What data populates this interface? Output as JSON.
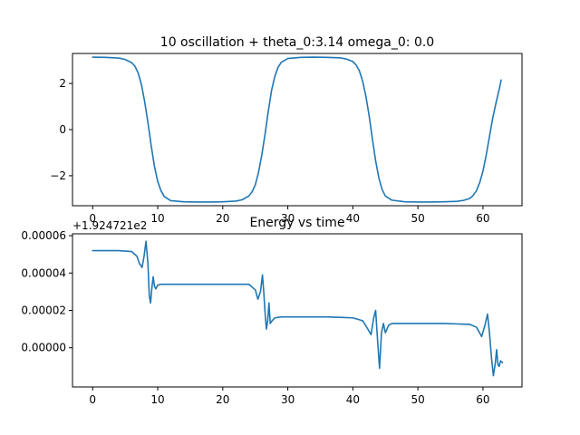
{
  "chart_data": [
    {
      "type": "line",
      "title": "10 oscillation + theta_0:3.14 omega_0: 0.0",
      "xlabel": "",
      "ylabel": "",
      "xlim": [
        -3.1,
        66.0
      ],
      "ylim": [
        -3.3,
        3.3
      ],
      "xticks": [
        0,
        10,
        20,
        30,
        40,
        50,
        60
      ],
      "xtick_labels": [
        "0",
        "10",
        "20",
        "30",
        "40",
        "50",
        "60"
      ],
      "yticks": [
        -2,
        0,
        2
      ],
      "ytick_labels": [
        "−2",
        "0",
        "2"
      ],
      "grid": false,
      "color": "#1f77b4",
      "series": [
        {
          "x": [
            0,
            2,
            4,
            5,
            6,
            6.5,
            7,
            7.5,
            8,
            8.5,
            9,
            9.5,
            10,
            10.5,
            11,
            12,
            14,
            16,
            18,
            20,
            22,
            23,
            24,
            24.5,
            25,
            25.5,
            26,
            26.5,
            27,
            27.5,
            28,
            28.5,
            29,
            30,
            32,
            34,
            36,
            38,
            39,
            40,
            40.5,
            41,
            41.5,
            42,
            42.5,
            43,
            43.5,
            44,
            44.5,
            45,
            46,
            48,
            50,
            52,
            54,
            56,
            57,
            58,
            58.5,
            59,
            59.5,
            60,
            60.5,
            61,
            61.5,
            62,
            62.5,
            62.8
          ],
          "y": [
            3.14,
            3.13,
            3.1,
            3.04,
            2.9,
            2.75,
            2.45,
            1.95,
            1.2,
            0.3,
            -0.7,
            -1.6,
            -2.25,
            -2.65,
            -2.9,
            -3.08,
            -3.13,
            -3.14,
            -3.14,
            -3.13,
            -3.1,
            -3.04,
            -2.88,
            -2.7,
            -2.4,
            -1.85,
            -1.1,
            -0.2,
            0.8,
            1.7,
            2.3,
            2.7,
            2.92,
            3.08,
            3.13,
            3.14,
            3.13,
            3.11,
            3.06,
            2.95,
            2.8,
            2.55,
            2.1,
            1.45,
            0.6,
            -0.4,
            -1.35,
            -2.1,
            -2.6,
            -2.88,
            -3.06,
            -3.13,
            -3.14,
            -3.14,
            -3.13,
            -3.11,
            -3.07,
            -2.98,
            -2.85,
            -2.65,
            -2.3,
            -1.8,
            -1.1,
            -0.3,
            0.5,
            1.15,
            1.75,
            2.15
          ]
        }
      ]
    },
    {
      "type": "line",
      "title": "Energy vs time",
      "xlabel": "",
      "ylabel": "",
      "offset_text": "+1.924721e2",
      "xlim": [
        -3.1,
        66.0
      ],
      "ylim": [
        -2.1e-05,
        6.1e-05
      ],
      "xticks": [
        0,
        10,
        20,
        30,
        40,
        50,
        60
      ],
      "xtick_labels": [
        "0",
        "10",
        "20",
        "30",
        "40",
        "50",
        "60"
      ],
      "yticks": [
        0,
        2e-05,
        4e-05,
        6e-05
      ],
      "ytick_labels": [
        "0.00000",
        "0.00002",
        "0.00004",
        "0.00006"
      ],
      "grid": false,
      "color": "#1f77b4",
      "series": [
        {
          "x": [
            0,
            2,
            4,
            6,
            6.8,
            7.2,
            7.6,
            7.9,
            8.2,
            8.5,
            8.7,
            8.9,
            9.1,
            9.3,
            9.5,
            9.7,
            10,
            10.5,
            11,
            14,
            18,
            22,
            24,
            25,
            25.4,
            25.8,
            26.1,
            26.3,
            26.5,
            26.7,
            26.9,
            27.1,
            27.3,
            27.6,
            28,
            29,
            32,
            36,
            40,
            41.5,
            42.3,
            42.8,
            43.2,
            43.5,
            43.8,
            44.1,
            44.4,
            44.7,
            45,
            45.5,
            46,
            50,
            54,
            58,
            59,
            59.8,
            60.3,
            60.7,
            61,
            61.3,
            61.6,
            61.9,
            62.1,
            62.3,
            62.5,
            62.7,
            63
          ],
          "y": [
            5.2e-05,
            5.2e-05,
            5.2e-05,
            5.15e-05,
            4.9e-05,
            4.5e-05,
            4.3e-05,
            4.9e-05,
            5.7e-05,
            4.5e-05,
            2.8e-05,
            2.4e-05,
            3.2e-05,
            3.8e-05,
            3.3e-05,
            3.15e-05,
            3.35e-05,
            3.4e-05,
            3.4e-05,
            3.4e-05,
            3.4e-05,
            3.4e-05,
            3.4e-05,
            3.1e-05,
            2.6e-05,
            3e-05,
            3.9e-05,
            3e-05,
            1.9e-05,
            1e-05,
            1.4e-05,
            2.4e-05,
            1.3e-05,
            1.45e-05,
            1.6e-05,
            1.65e-05,
            1.65e-05,
            1.65e-05,
            1.6e-05,
            1.45e-05,
            1e-05,
            7e-06,
            1.6e-05,
            2e-05,
            4e-06,
            -1.1e-05,
            8e-06,
            1.3e-05,
            8e-06,
            1.2e-05,
            1.3e-05,
            1.3e-05,
            1.3e-05,
            1.25e-05,
            1.1e-05,
            6e-06,
            1.2e-05,
            1.8e-05,
            8e-06,
            -5e-06,
            -1.5e-05,
            -8e-06,
            -1e-06,
            -9e-06,
            -1e-05,
            -7e-06,
            -8e-06
          ]
        }
      ]
    }
  ]
}
